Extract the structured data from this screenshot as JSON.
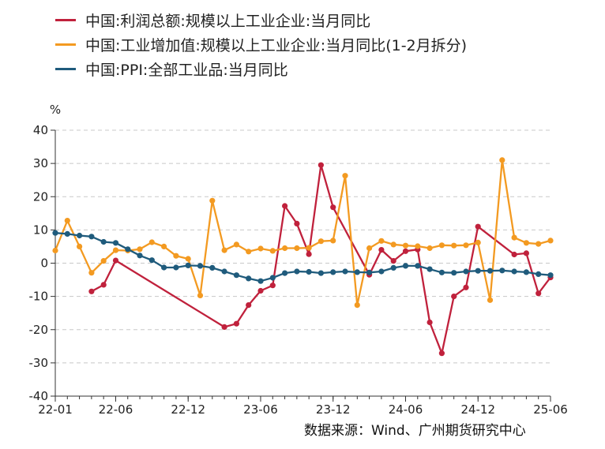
{
  "legend": [
    {
      "label": "中国:利润总额:规模以上工业企业:当月同比",
      "color": "#c0213c"
    },
    {
      "label": "中国:工业增加值:规模以上工业企业:当月同比(1-2月拆分)",
      "color": "#f39a21"
    },
    {
      "label": "中国:PPI:全部工业品:当月同比",
      "color": "#1f5b7c"
    }
  ],
  "source": "数据来源：Wind、广州期货研究中心",
  "chart_data": {
    "type": "line",
    "ylabel": "%",
    "ylim": [
      -40,
      40
    ],
    "yticks": [
      -40,
      -30,
      -20,
      -10,
      0,
      10,
      20,
      30,
      40
    ],
    "x_start": "22-01",
    "x_end": "25-06",
    "xtick_labels": [
      "22-01",
      "22-06",
      "22-12",
      "23-06",
      "23-12",
      "24-06",
      "24-12",
      "25-06"
    ],
    "grid": true,
    "legend_position": "top",
    "series": [
      {
        "name": "中国:利润总额:规模以上工业企业:当月同比",
        "color": "#c0213c",
        "points": [
          [
            "22-04",
            -8.5
          ],
          [
            "22-05",
            -6.5
          ],
          [
            "22-06",
            0.8
          ],
          [
            "23-03",
            -19.2
          ],
          [
            "23-04",
            -18.2
          ],
          [
            "23-05",
            -12.6
          ],
          [
            "23-06",
            -8.3
          ],
          [
            "23-07",
            -6.7
          ],
          [
            "23-08",
            17.2
          ],
          [
            "23-09",
            11.9
          ],
          [
            "23-10",
            2.7
          ],
          [
            "23-11",
            29.5
          ],
          [
            "23-12",
            16.8
          ],
          [
            "24-03",
            -3.5
          ],
          [
            "24-04",
            4.0
          ],
          [
            "24-05",
            0.7
          ],
          [
            "24-06",
            3.6
          ],
          [
            "24-07",
            4.1
          ],
          [
            "24-08",
            -17.8
          ],
          [
            "24-09",
            -27.1
          ],
          [
            "24-10",
            -10.0
          ],
          [
            "24-11",
            -7.3
          ],
          [
            "24-12",
            11.0
          ],
          [
            "25-03",
            2.6
          ],
          [
            "25-04",
            3.0
          ],
          [
            "25-05",
            -9.1
          ],
          [
            "25-06",
            -4.3
          ]
        ]
      },
      {
        "name": "中国:工业增加值:规模以上工业企业:当月同比(1-2月拆分)",
        "color": "#f39a21",
        "points": [
          [
            "22-01",
            3.8
          ],
          [
            "22-02",
            12.8
          ],
          [
            "22-03",
            5.0
          ],
          [
            "22-04",
            -2.9
          ],
          [
            "22-05",
            0.7
          ],
          [
            "22-06",
            3.9
          ],
          [
            "22-07",
            3.8
          ],
          [
            "22-08",
            4.2
          ],
          [
            "22-09",
            6.3
          ],
          [
            "22-10",
            5.0
          ],
          [
            "22-11",
            2.2
          ],
          [
            "22-12",
            1.3
          ],
          [
            "23-01",
            -9.7
          ],
          [
            "23-02",
            18.8
          ],
          [
            "23-03",
            3.9
          ],
          [
            "23-04",
            5.6
          ],
          [
            "23-05",
            3.5
          ],
          [
            "23-06",
            4.4
          ],
          [
            "23-07",
            3.7
          ],
          [
            "23-08",
            4.5
          ],
          [
            "23-09",
            4.5
          ],
          [
            "23-10",
            4.6
          ],
          [
            "23-11",
            6.6
          ],
          [
            "23-12",
            6.8
          ],
          [
            "24-01",
            26.3
          ],
          [
            "24-02",
            -12.6
          ],
          [
            "24-03",
            4.5
          ],
          [
            "24-04",
            6.7
          ],
          [
            "24-05",
            5.6
          ],
          [
            "24-06",
            5.3
          ],
          [
            "24-07",
            5.1
          ],
          [
            "24-08",
            4.5
          ],
          [
            "24-09",
            5.4
          ],
          [
            "24-10",
            5.3
          ],
          [
            "24-11",
            5.4
          ],
          [
            "24-12",
            6.2
          ],
          [
            "25-01",
            -11.1
          ],
          [
            "25-02",
            31.0
          ],
          [
            "25-03",
            7.7
          ],
          [
            "25-04",
            6.1
          ],
          [
            "25-05",
            5.8
          ],
          [
            "25-06",
            6.8
          ]
        ]
      },
      {
        "name": "中国:PPI:全部工业品:当月同比",
        "color": "#1f5b7c",
        "points": [
          [
            "22-01",
            9.1
          ],
          [
            "22-02",
            8.8
          ],
          [
            "22-03",
            8.3
          ],
          [
            "22-04",
            8.0
          ],
          [
            "22-05",
            6.4
          ],
          [
            "22-06",
            6.1
          ],
          [
            "22-07",
            4.2
          ],
          [
            "22-08",
            2.3
          ],
          [
            "22-09",
            0.9
          ],
          [
            "22-10",
            -1.3
          ],
          [
            "22-11",
            -1.3
          ],
          [
            "22-12",
            -0.7
          ],
          [
            "23-01",
            -0.8
          ],
          [
            "23-02",
            -1.4
          ],
          [
            "23-03",
            -2.5
          ],
          [
            "23-04",
            -3.6
          ],
          [
            "23-05",
            -4.6
          ],
          [
            "23-06",
            -5.4
          ],
          [
            "23-07",
            -4.4
          ],
          [
            "23-08",
            -3.0
          ],
          [
            "23-09",
            -2.5
          ],
          [
            "23-10",
            -2.6
          ],
          [
            "23-11",
            -3.0
          ],
          [
            "23-12",
            -2.7
          ],
          [
            "24-01",
            -2.5
          ],
          [
            "24-02",
            -2.7
          ],
          [
            "24-03",
            -2.8
          ],
          [
            "24-04",
            -2.5
          ],
          [
            "24-05",
            -1.4
          ],
          [
            "24-06",
            -0.8
          ],
          [
            "24-07",
            -0.8
          ],
          [
            "24-08",
            -1.8
          ],
          [
            "24-09",
            -2.8
          ],
          [
            "24-10",
            -2.9
          ],
          [
            "24-11",
            -2.5
          ],
          [
            "24-12",
            -2.3
          ],
          [
            "25-01",
            -2.3
          ],
          [
            "25-02",
            -2.2
          ],
          [
            "25-03",
            -2.5
          ],
          [
            "25-04",
            -2.7
          ],
          [
            "25-05",
            -3.3
          ],
          [
            "25-06",
            -3.6
          ]
        ]
      }
    ]
  }
}
